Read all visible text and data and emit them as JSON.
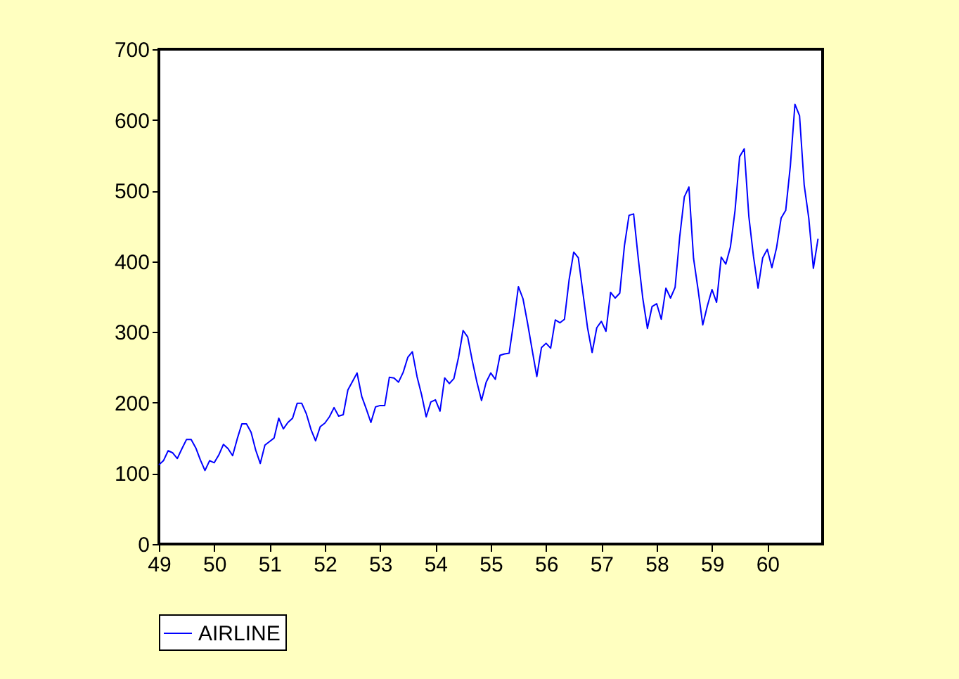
{
  "chart_data": {
    "type": "line",
    "x": [
      49,
      49.083,
      49.167,
      49.25,
      49.333,
      49.417,
      49.5,
      49.583,
      49.667,
      49.75,
      49.833,
      49.917,
      50,
      50.083,
      50.167,
      50.25,
      50.333,
      50.417,
      50.5,
      50.583,
      50.667,
      50.75,
      50.833,
      50.917,
      51,
      51.083,
      51.167,
      51.25,
      51.333,
      51.417,
      51.5,
      51.583,
      51.667,
      51.75,
      51.833,
      51.917,
      52,
      52.083,
      52.167,
      52.25,
      52.333,
      52.417,
      52.5,
      52.583,
      52.667,
      52.75,
      52.833,
      52.917,
      53,
      53.083,
      53.167,
      53.25,
      53.333,
      53.417,
      53.5,
      53.583,
      53.667,
      53.75,
      53.833,
      53.917,
      54,
      54.083,
      54.167,
      54.25,
      54.333,
      54.417,
      54.5,
      54.583,
      54.667,
      54.75,
      54.833,
      54.917,
      55,
      55.083,
      55.167,
      55.25,
      55.333,
      55.417,
      55.5,
      55.583,
      55.667,
      55.75,
      55.833,
      55.917,
      56,
      56.083,
      56.167,
      56.25,
      56.333,
      56.417,
      56.5,
      56.583,
      56.667,
      56.75,
      56.833,
      56.917,
      57,
      57.083,
      57.167,
      57.25,
      57.333,
      57.417,
      57.5,
      57.583,
      57.667,
      57.75,
      57.833,
      57.917,
      58,
      58.083,
      58.167,
      58.25,
      58.333,
      58.417,
      58.5,
      58.583,
      58.667,
      58.75,
      58.833,
      58.917,
      59,
      59.083,
      59.167,
      59.25,
      59.333,
      59.417,
      59.5,
      59.583,
      59.667,
      59.75,
      59.833,
      59.917,
      60,
      60.083,
      60.167,
      60.25,
      60.333,
      60.417,
      60.5,
      60.583,
      60.667,
      60.75,
      60.833,
      60.917
    ],
    "series": [
      {
        "name": "AIRLINE",
        "color": "#0000ff",
        "values": [
          112,
          118,
          132,
          129,
          121,
          135,
          148,
          148,
          136,
          119,
          104,
          118,
          115,
          126,
          141,
          135,
          125,
          149,
          170,
          170,
          158,
          133,
          114,
          140,
          145,
          150,
          178,
          163,
          172,
          178,
          199,
          199,
          184,
          162,
          146,
          166,
          171,
          180,
          193,
          181,
          183,
          218,
          230,
          242,
          209,
          191,
          172,
          194,
          196,
          196,
          236,
          235,
          229,
          243,
          264,
          272,
          237,
          211,
          180,
          201,
          204,
          188,
          235,
          227,
          234,
          264,
          302,
          293,
          259,
          229,
          203,
          229,
          242,
          233,
          267,
          269,
          270,
          315,
          364,
          347,
          312,
          274,
          237,
          278,
          284,
          277,
          317,
          313,
          318,
          374,
          413,
          405,
          355,
          306,
          271,
          306,
          315,
          301,
          356,
          348,
          355,
          422,
          465,
          467,
          404,
          347,
          305,
          336,
          340,
          318,
          362,
          348,
          363,
          435,
          491,
          505,
          404,
          359,
          310,
          337,
          360,
          342,
          406,
          396,
          420,
          472,
          548,
          559,
          463,
          407,
          362,
          405,
          417,
          391,
          419,
          461,
          472,
          535,
          622,
          606,
          508,
          461,
          390,
          432
        ]
      }
    ],
    "xlim": [
      49,
      61
    ],
    "xticks": [
      49,
      50,
      51,
      52,
      53,
      54,
      55,
      56,
      57,
      58,
      59,
      60
    ],
    "ylim": [
      0,
      700
    ],
    "yticks": [
      0,
      100,
      200,
      300,
      400,
      500,
      600,
      700
    ],
    "grid": false,
    "legend": "bottom",
    "marker": "none",
    "line_style": "solid"
  }
}
